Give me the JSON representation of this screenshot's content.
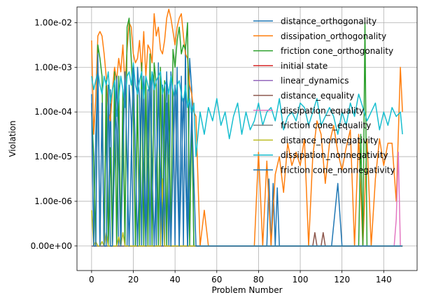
{
  "chart_data": {
    "type": "line",
    "title": "",
    "xlabel": "Problem Number",
    "ylabel": "Violation",
    "xlim": [
      -7,
      156
    ],
    "ylim": [
      -0.55,
      5.35
    ],
    "x_ticks": [
      0,
      20,
      40,
      60,
      80,
      100,
      120,
      140
    ],
    "y_ticks": [
      0,
      1,
      2,
      3,
      4,
      5
    ],
    "y_tick_labels": [
      "0.00e+00",
      "1.00e-06",
      "1.00e-05",
      "1.00e-04",
      "1.00e-03",
      "1.00e-02"
    ],
    "y_scale": "symlog (0 then log10 decades from 1e-06)",
    "grid": true,
    "legend_position": "top-right",
    "series": [
      {
        "name": "distance_orthogonality",
        "color": "#1f77b4",
        "x": [
          0,
          1,
          2,
          3,
          4,
          5,
          6,
          7,
          8,
          9,
          10,
          11,
          12,
          13,
          14,
          15,
          16,
          17,
          18,
          19,
          20,
          21,
          22,
          23,
          24,
          25,
          26,
          27,
          28,
          29,
          30,
          31,
          32,
          33,
          34,
          35,
          36,
          37,
          38,
          39,
          40,
          41,
          42,
          43,
          44,
          45,
          46,
          47,
          48,
          49,
          50,
          60,
          70,
          80,
          82,
          84,
          85,
          86,
          87,
          88,
          89,
          90,
          92,
          95,
          100,
          105,
          110,
          115,
          118,
          120,
          125,
          130,
          135,
          140,
          145,
          149
        ],
        "y": [
          3.2,
          0,
          2.5,
          3.8,
          0,
          3.0,
          0,
          2.8,
          0,
          3.5,
          0,
          3.4,
          2.6,
          0,
          0,
          3.1,
          0,
          0,
          3.6,
          2.8,
          0,
          0,
          4.0,
          3.3,
          0,
          3.8,
          0,
          3.5,
          0,
          3.9,
          3.7,
          0,
          4.1,
          0,
          3.6,
          0,
          3.2,
          0,
          3.9,
          3.4,
          0,
          4.0,
          0,
          3.8,
          0,
          4.5,
          0,
          4.2,
          3.5,
          0,
          0,
          0,
          0,
          0,
          0,
          0,
          1.5,
          0,
          1.4,
          0,
          1.3,
          0,
          0,
          0,
          0,
          0,
          0,
          0,
          1.4,
          0,
          0,
          0,
          0,
          0,
          0,
          0
        ]
      },
      {
        "name": "dissipation_orthogonality",
        "color": "#ff7f0e",
        "x": [
          0,
          1,
          2,
          3,
          4,
          5,
          6,
          7,
          8,
          9,
          10,
          11,
          12,
          13,
          14,
          15,
          16,
          17,
          18,
          19,
          20,
          21,
          22,
          23,
          24,
          25,
          26,
          27,
          28,
          29,
          30,
          31,
          32,
          33,
          34,
          35,
          36,
          37,
          38,
          39,
          40,
          41,
          42,
          43,
          44,
          45,
          46,
          47,
          48,
          49,
          50,
          52,
          54,
          56,
          58,
          60,
          62,
          64,
          66,
          68,
          70,
          72,
          74,
          76,
          78,
          80,
          82,
          84,
          86,
          88,
          90,
          92,
          94,
          96,
          98,
          100,
          102,
          104,
          106,
          108,
          110,
          112,
          114,
          116,
          118,
          120,
          122,
          124,
          126,
          128,
          130,
          132,
          134,
          136,
          138,
          140,
          142,
          144,
          146,
          148,
          149
        ],
        "y": [
          4.6,
          2.5,
          3.3,
          4.7,
          4.8,
          4.7,
          4.3,
          3.8,
          3.0,
          2.8,
          3.5,
          4.0,
          3.7,
          4.2,
          3.9,
          4.5,
          3.6,
          4.4,
          5.0,
          4.9,
          4.3,
          4.1,
          4.2,
          4.6,
          3.9,
          4.8,
          3.8,
          4.5,
          4.4,
          4.1,
          5.2,
          4.7,
          4.9,
          4.4,
          4.3,
          4.6,
          5.1,
          5.3,
          5.1,
          4.8,
          4.5,
          4.9,
          5.1,
          5.2,
          4.7,
          4.3,
          4.2,
          3.6,
          3.4,
          3.0,
          2.9,
          0,
          0.8,
          0,
          0,
          0,
          0,
          0,
          0,
          0,
          0,
          0,
          0,
          0,
          0,
          2.1,
          0,
          1.9,
          0,
          1.6,
          2.0,
          1.2,
          2.3,
          1.8,
          2.1,
          1.8,
          2.4,
          0,
          2.0,
          2.8,
          2.5,
          1.4,
          2.3,
          2.7,
          2.1,
          1.7,
          2.2,
          2.6,
          0,
          2.5,
          0,
          2.4,
          0,
          1.5,
          2.4,
          1.8,
          2.3,
          2.3,
          1.0,
          4.0,
          3.0
        ]
      },
      {
        "name": "friction cone_orthogonality",
        "color": "#2ca02c",
        "x": [
          0,
          1,
          2,
          3,
          4,
          5,
          6,
          7,
          8,
          9,
          10,
          11,
          12,
          13,
          14,
          15,
          16,
          17,
          18,
          19,
          20,
          21,
          22,
          23,
          24,
          25,
          26,
          27,
          28,
          29,
          30,
          31,
          32,
          33,
          34,
          35,
          36,
          37,
          38,
          39,
          40,
          41,
          42,
          43,
          44,
          45,
          46,
          47,
          48,
          49,
          50,
          55,
          60,
          65,
          70,
          80,
          90,
          100,
          110,
          120,
          128,
          129,
          130,
          131,
          132,
          133,
          140,
          149
        ],
        "y": [
          3.0,
          2.0,
          0,
          4.5,
          4.2,
          3.8,
          0,
          3.7,
          0,
          2.2,
          0,
          3.9,
          0,
          3.8,
          0,
          3.5,
          0,
          4.9,
          5.1,
          4.2,
          3.0,
          0,
          3.4,
          0,
          4.1,
          0,
          3.8,
          0,
          4.3,
          0,
          4.1,
          3.6,
          0,
          4.0,
          0,
          3.7,
          0,
          3.5,
          0,
          4.4,
          4.0,
          4.6,
          4.9,
          4.3,
          4.5,
          4.4,
          5.0,
          0,
          3.0,
          0,
          0,
          0,
          0,
          0,
          0,
          0,
          0,
          0,
          0,
          0,
          0,
          2.5,
          0,
          5.0,
          0,
          0,
          0,
          0
        ]
      },
      {
        "name": "initial state",
        "color": "#d62728",
        "x": [
          0,
          149
        ],
        "y": [
          0,
          0
        ]
      },
      {
        "name": "linear_dynamics",
        "color": "#9467bd",
        "x": [
          0,
          149
        ],
        "y": [
          0,
          0
        ]
      },
      {
        "name": "distance_equality",
        "color": "#8c564b",
        "x": [
          0,
          104,
          105,
          106,
          107,
          108,
          109,
          110,
          111,
          112,
          113,
          149
        ],
        "y": [
          0,
          0,
          0,
          0,
          0.3,
          0,
          0,
          0,
          0.3,
          0,
          0,
          0
        ]
      },
      {
        "name": "dissipation_equality",
        "color": "#e377c2",
        "x": [
          0,
          145,
          146,
          147,
          148,
          149
        ],
        "y": [
          0,
          0,
          0.6,
          2.1,
          0,
          0
        ]
      },
      {
        "name": "friction cone_equality",
        "color": "#7f7f7f",
        "x": [
          0,
          149
        ],
        "y": [
          0,
          0
        ]
      },
      {
        "name": "distance_nonnegativity",
        "color": "#bcbd22",
        "x": [
          0,
          1,
          2,
          3,
          4,
          5,
          6,
          7,
          8,
          9,
          10,
          11,
          12,
          13,
          14,
          15,
          16,
          17,
          18,
          19,
          20,
          25,
          30,
          33,
          34,
          35,
          36,
          40,
          45,
          50,
          60,
          149
        ],
        "y": [
          0.8,
          0,
          0.1,
          0,
          0,
          0.1,
          0,
          0.3,
          0,
          0,
          0,
          0,
          0,
          0.2,
          0,
          0.3,
          0,
          0,
          0,
          0,
          0,
          0,
          0,
          0,
          1.5,
          0,
          0,
          0,
          0,
          0,
          0,
          0
        ]
      },
      {
        "name": "dissipation_nonnegativity",
        "color": "#17becf",
        "x": [
          0,
          1,
          2,
          3,
          4,
          5,
          6,
          7,
          8,
          9,
          10,
          11,
          12,
          13,
          14,
          15,
          16,
          17,
          18,
          19,
          20,
          21,
          22,
          23,
          24,
          25,
          26,
          27,
          28,
          29,
          30,
          31,
          32,
          33,
          34,
          35,
          36,
          37,
          38,
          39,
          40,
          41,
          42,
          43,
          44,
          45,
          46,
          47,
          48,
          49,
          50,
          52,
          54,
          56,
          58,
          60,
          62,
          64,
          66,
          68,
          70,
          72,
          74,
          76,
          78,
          80,
          82,
          84,
          86,
          88,
          90,
          92,
          94,
          96,
          98,
          100,
          102,
          104,
          106,
          108,
          110,
          112,
          114,
          116,
          118,
          120,
          122,
          124,
          126,
          128,
          130,
          132,
          134,
          136,
          138,
          140,
          142,
          144,
          146,
          148,
          149
        ],
        "y": [
          3.8,
          3.5,
          3.7,
          3.9,
          3.6,
          3.4,
          3.8,
          3.6,
          3.9,
          3.2,
          3.5,
          3.7,
          2.9,
          3.3,
          3.8,
          3.5,
          3.1,
          3.8,
          3.9,
          3.6,
          4.1,
          3.6,
          3.4,
          3.7,
          3.9,
          3.3,
          3.8,
          3.6,
          3.4,
          3.9,
          3.5,
          3.7,
          3.8,
          3.9,
          3.4,
          3.6,
          3.7,
          3.4,
          3.8,
          3.5,
          3.3,
          3.6,
          3.7,
          3.4,
          3.2,
          3.6,
          3.1,
          3.3,
          2.9,
          3.2,
          2.0,
          3.0,
          2.5,
          3.1,
          2.8,
          3.3,
          2.7,
          3.0,
          2.4,
          2.9,
          3.2,
          2.5,
          3.0,
          2.6,
          2.8,
          3.2,
          2.7,
          3.0,
          3.1,
          2.8,
          3.3,
          2.6,
          2.9,
          3.0,
          2.8,
          3.2,
          3.1,
          2.7,
          3.0,
          3.3,
          2.7,
          2.9,
          3.1,
          2.9,
          2.5,
          3.0,
          2.7,
          3.2,
          2.9,
          3.4,
          3.1,
          2.8,
          3.0,
          3.2,
          2.6,
          3.0,
          2.7,
          3.1,
          2.9,
          3.0,
          2.5
        ]
      },
      {
        "name": "friction cone_nonnegativity",
        "color": "#1f77b4",
        "x": [
          0,
          1,
          2,
          3,
          4,
          5,
          6,
          7,
          8,
          9,
          10,
          12,
          14,
          16,
          18,
          20,
          22,
          24,
          26,
          28,
          30,
          32,
          34,
          36,
          38,
          40,
          42,
          44,
          46,
          48,
          50,
          149
        ],
        "y": [
          3.4,
          0,
          0,
          4.3,
          0,
          3.2,
          0,
          0,
          3.6,
          0,
          0,
          3.8,
          0,
          3.9,
          0,
          4.0,
          0,
          3.5,
          0,
          3.7,
          0,
          3.4,
          0,
          3.9,
          0,
          3.6,
          0,
          3.3,
          0,
          3.0,
          0,
          0
        ]
      }
    ]
  }
}
